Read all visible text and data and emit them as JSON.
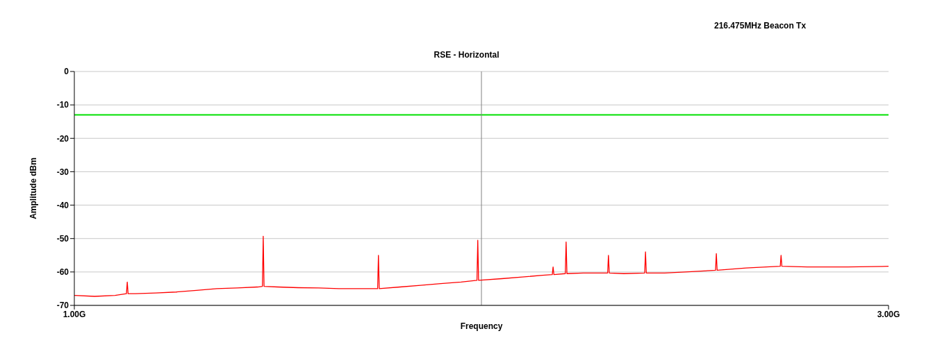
{
  "chart_data": {
    "type": "line",
    "title": "RSE - Horizontal",
    "subtitle": "216.475MHz Beacon Tx",
    "xlabel": "Frequency",
    "ylabel": "Amplitude dBm",
    "xlim": [
      1,
      3
    ],
    "xticks": [
      {
        "value": 1,
        "label": "1.00G"
      },
      {
        "value": 3,
        "label": "3.00G"
      }
    ],
    "ylim": [
      -70,
      0
    ],
    "yticks": [
      -70,
      -60,
      -50,
      -40,
      -30,
      -20,
      -10,
      0
    ],
    "grid": "y",
    "marker": "none",
    "ref_lines": [
      {
        "axis": "y",
        "value": -13,
        "label": null,
        "color": "#00e000"
      },
      {
        "axis": "x",
        "value": 2,
        "label": null,
        "color": "#808080"
      }
    ],
    "series": [
      {
        "color": "#ff0000",
        "x": [
          1.0,
          1.05,
          1.1,
          1.128,
          1.13,
          1.132,
          1.15,
          1.2,
          1.25,
          1.3,
          1.35,
          1.4,
          1.45,
          1.462,
          1.464,
          1.466,
          1.5,
          1.55,
          1.6,
          1.65,
          1.7,
          1.745,
          1.747,
          1.749,
          1.8,
          1.85,
          1.9,
          1.95,
          1.989,
          1.991,
          1.993,
          2.05,
          2.1,
          2.15,
          2.174,
          2.176,
          2.178,
          2.206,
          2.208,
          2.21,
          2.25,
          2.31,
          2.312,
          2.314,
          2.35,
          2.401,
          2.403,
          2.405,
          2.45,
          2.5,
          2.575,
          2.577,
          2.579,
          2.65,
          2.7,
          2.734,
          2.736,
          2.738,
          2.8,
          2.9,
          3.0
        ],
        "values": [
          -67,
          -67.3,
          -67,
          -66.5,
          -63,
          -66.5,
          -66.5,
          -66.3,
          -66,
          -65.5,
          -65,
          -64.8,
          -64.5,
          -64.3,
          -49.3,
          -64.3,
          -64.5,
          -64.7,
          -64.8,
          -65,
          -65,
          -65,
          -55,
          -65,
          -64.5,
          -64,
          -63.5,
          -63,
          -62.5,
          -50.5,
          -62.5,
          -62,
          -61.5,
          -61,
          -60.8,
          -58.5,
          -60.8,
          -60.5,
          -51,
          -60.5,
          -60.3,
          -60.3,
          -55,
          -60.3,
          -60.5,
          -60.3,
          -54,
          -60.3,
          -60.3,
          -60,
          -59.5,
          -54.5,
          -59.5,
          -58.8,
          -58.5,
          -58.3,
          -55,
          -58.3,
          -58.5,
          -58.5,
          -58.3
        ]
      }
    ]
  }
}
